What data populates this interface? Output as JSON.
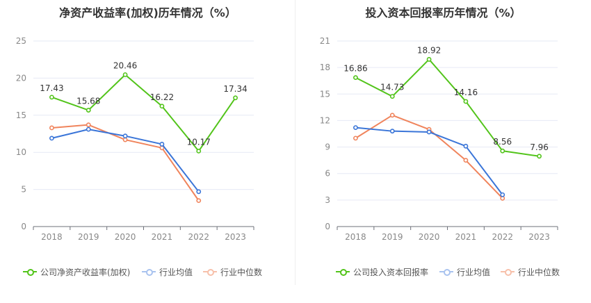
{
  "chart_data": [
    {
      "type": "line",
      "title": "净资产收益率(加权)历年情况（%）",
      "categories": [
        "2018",
        "2019",
        "2020",
        "2021",
        "2022",
        "2023"
      ],
      "ylim": [
        0,
        25
      ],
      "yticks": [
        0,
        5,
        10,
        15,
        20,
        25
      ],
      "grid": true,
      "legend_position": "bottom",
      "series": [
        {
          "name": "公司净资产收益率(加权)",
          "color": "#52c41a",
          "values": [
            17.43,
            15.68,
            20.46,
            16.22,
            10.17,
            17.34
          ],
          "labels": [
            "17.43",
            "15.68",
            "20.46",
            "16.22",
            "10.17",
            "17.34"
          ]
        },
        {
          "name": "行业均值",
          "color": "#3a75d8",
          "values": [
            11.9,
            13.1,
            12.2,
            11.1,
            4.7,
            null
          ]
        },
        {
          "name": "行业中位数",
          "color": "#f0845c",
          "values": [
            13.3,
            13.7,
            11.7,
            10.6,
            3.5,
            null
          ]
        }
      ]
    },
    {
      "type": "line",
      "title": "投入资本回报率历年情况（%）",
      "categories": [
        "2018",
        "2019",
        "2020",
        "2021",
        "2022",
        "2023"
      ],
      "ylim": [
        0,
        21
      ],
      "yticks": [
        0,
        3,
        6,
        9,
        12,
        15,
        18,
        21
      ],
      "grid": true,
      "legend_position": "bottom",
      "series": [
        {
          "name": "公司投入资本回报率",
          "color": "#52c41a",
          "values": [
            16.86,
            14.73,
            18.92,
            14.16,
            8.56,
            7.96
          ],
          "labels": [
            "16.86",
            "14.73",
            "18.92",
            "14.16",
            "8.56",
            "7.96"
          ]
        },
        {
          "name": "行业均值",
          "color": "#3a75d8",
          "values": [
            11.2,
            10.8,
            10.7,
            9.1,
            3.6,
            null
          ]
        },
        {
          "name": "行业中位数",
          "color": "#f0845c",
          "values": [
            10.0,
            12.6,
            11.0,
            7.5,
            3.2,
            null
          ]
        }
      ]
    }
  ]
}
